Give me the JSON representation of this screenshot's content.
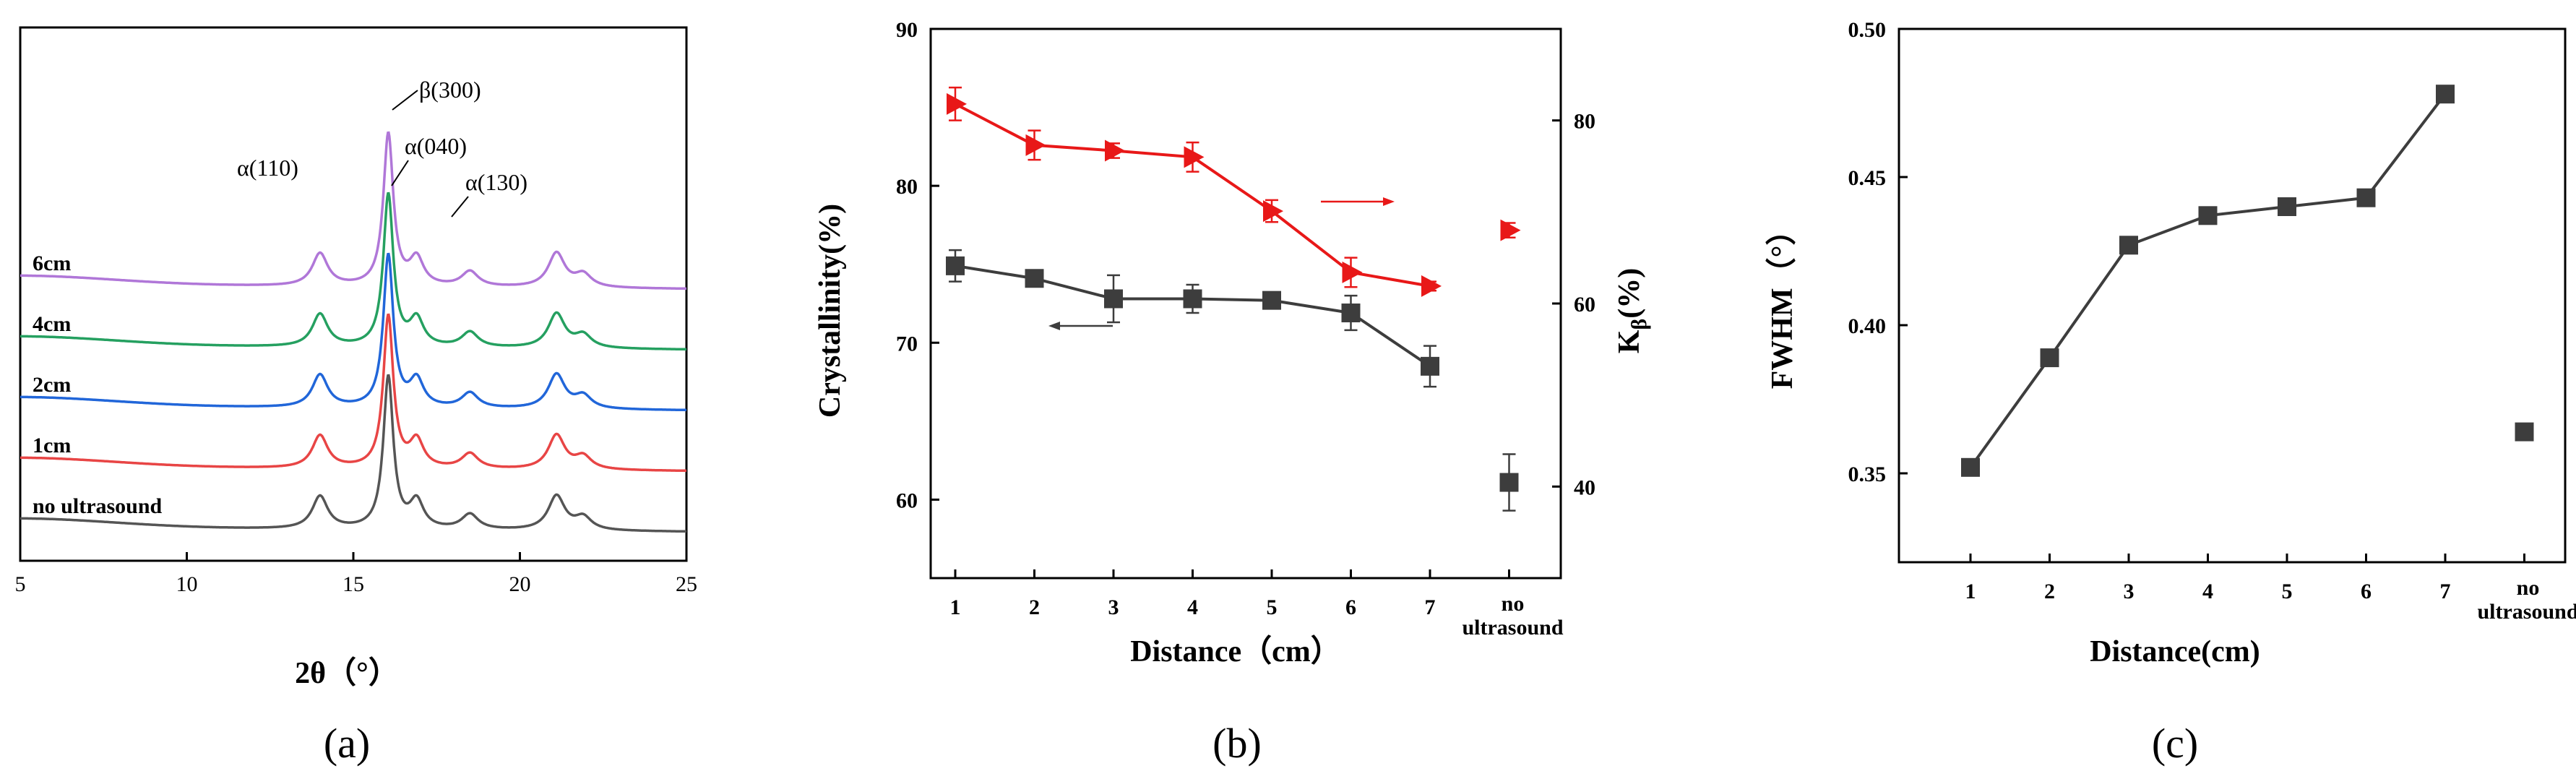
{
  "chart_data": [
    {
      "type": "line",
      "panel_label": "(a)",
      "xlabel": "2θ（°）",
      "ylabel": "",
      "xlim": [
        5,
        25
      ],
      "xticks": [
        "5",
        "10",
        "15",
        "20",
        "25"
      ],
      "series": [
        {
          "name": "no ultrasound",
          "color": "#555555",
          "offset": 0
        },
        {
          "name": "1cm",
          "color": "#e84545",
          "offset": 1
        },
        {
          "name": "2cm",
          "color": "#2166d9",
          "offset": 2
        },
        {
          "name": "4cm",
          "color": "#25a060",
          "offset": 3
        },
        {
          "name": "6cm",
          "color": "#b077d8",
          "offset": 4
        }
      ],
      "peaks": [
        {
          "x": 14.0,
          "h": 0.9,
          "w": 0.28
        },
        {
          "x": 16.05,
          "h": 4.2,
          "w": 0.18
        },
        {
          "x": 16.9,
          "h": 0.75,
          "w": 0.25
        },
        {
          "x": 18.5,
          "h": 0.42,
          "w": 0.3
        },
        {
          "x": 21.1,
          "h": 0.95,
          "w": 0.3
        },
        {
          "x": 21.9,
          "h": 0.35,
          "w": 0.3
        }
      ],
      "annotations": [
        "α(110)",
        "β(300)",
        "α(040)",
        "α(130)"
      ]
    },
    {
      "type": "line",
      "panel_label": "(b)",
      "xlabel": "Distance（cm）",
      "ylabel": "Crystallinity(%)",
      "y2label": "Kβ(%)",
      "y2label_main": "K",
      "y2label_sub": "β",
      "y2label_rest": "(%)",
      "categories": [
        "1",
        "2",
        "3",
        "4",
        "5",
        "6",
        "7",
        "no",
        "ultrasound"
      ],
      "ylim": [
        55,
        90
      ],
      "yticks": [
        "60",
        "70",
        "80",
        "90"
      ],
      "y2lim": [
        30,
        90
      ],
      "y2ticks": [
        "40",
        "60",
        "80"
      ],
      "series": [
        {
          "name": "Crystallinity",
          "axis": "left",
          "color": "#3d3d3d",
          "marker": "square",
          "x": [
            1,
            2,
            3,
            4,
            5,
            6,
            7
          ],
          "values": [
            74.9,
            74.1,
            72.8,
            72.8,
            72.7,
            71.9,
            68.5
          ],
          "errors": [
            1.0,
            0.4,
            1.5,
            0.9,
            0.4,
            1.1,
            1.3
          ]
        },
        {
          "name": "Crystallinity (no ultrasound)",
          "axis": "left",
          "color": "#3d3d3d",
          "marker": "square",
          "x": [
            8
          ],
          "values": [
            61.1
          ],
          "errors": [
            1.8
          ]
        },
        {
          "name": "Kβ",
          "axis": "right",
          "color": "#e81818",
          "marker": "triangle-right",
          "x": [
            1,
            2,
            3,
            4,
            5,
            6,
            7
          ],
          "values": [
            81.8,
            77.3,
            76.7,
            76.0,
            70.1,
            63.4,
            61.9
          ],
          "errors": [
            1.8,
            1.6,
            0.8,
            1.6,
            1.2,
            1.6,
            0.5
          ]
        },
        {
          "name": "Kβ (no ultrasound)",
          "axis": "right",
          "color": "#e81818",
          "marker": "triangle-right",
          "x": [
            8
          ],
          "values": [
            68.0
          ],
          "errors": [
            0.8
          ]
        }
      ]
    },
    {
      "type": "line",
      "panel_label": "(c)",
      "xlabel": "Distance(cm)",
      "ylabel": "FWHM（°）",
      "categories": [
        "1",
        "2",
        "3",
        "4",
        "5",
        "6",
        "7",
        "no",
        "ultrasound"
      ],
      "ylim": [
        0.32,
        0.5
      ],
      "yticks": [
        "0.35",
        "0.40",
        "0.45",
        "0.50"
      ],
      "series": [
        {
          "name": "FWHM",
          "color": "#3d3d3d",
          "marker": "square",
          "x": [
            1,
            2,
            3,
            4,
            5,
            6,
            7
          ],
          "values": [
            0.352,
            0.389,
            0.427,
            0.437,
            0.44,
            0.443,
            0.478
          ]
        },
        {
          "name": "FWHM (no ultrasound)",
          "color": "#3d3d3d",
          "marker": "square",
          "x": [
            8
          ],
          "values": [
            0.364
          ]
        }
      ]
    }
  ]
}
